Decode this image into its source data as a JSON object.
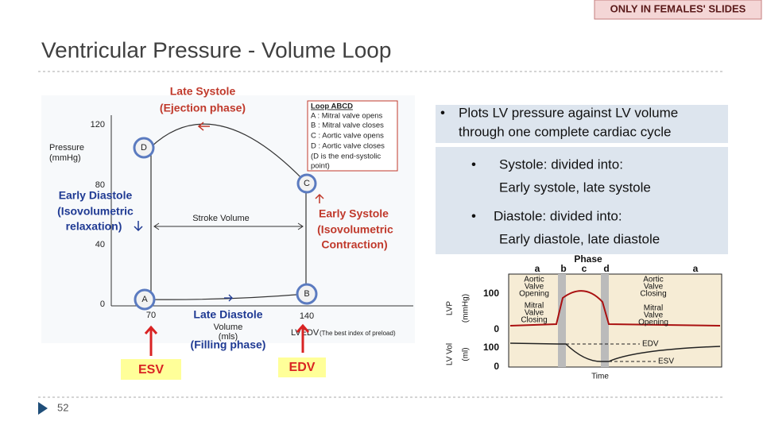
{
  "header": {
    "badge": "ONLY IN FEMALES' SLIDES",
    "title": "Ventricular Pressure - Volume Loop"
  },
  "loop_diagram": {
    "top_label": [
      "Late Systole",
      "(Ejection phase)"
    ],
    "y_axis_title": [
      "Pressure",
      "(mmHg)"
    ],
    "y_ticks": [
      "120",
      "80",
      "40",
      "0"
    ],
    "points": [
      "A",
      "B",
      "C",
      "D"
    ],
    "early_diastole": [
      "Early Diastole",
      "(Isovolumetric",
      "relaxation)"
    ],
    "stroke_volume": "Stroke Volume",
    "early_systole": [
      "Early Systole",
      "(Isovolumetric",
      "Contraction)"
    ],
    "x_ticks": [
      "70",
      "140"
    ],
    "x_axis_title": [
      "Volume",
      "(mls)"
    ],
    "late_diastole": [
      "Late Diastole",
      "(Filling phase)"
    ],
    "lvedv": "LVEDV",
    "lvedv_note": "(The best index of preload)",
    "legend": [
      "Loop  ABCD",
      "A : Mitral valve opens",
      "B : Mitral valve closes",
      "C : Aortic valve opens",
      "D : Aortic valve closes",
      "(D is the end-systolic",
      "point)"
    ],
    "esv": "ESV",
    "edv": "EDV"
  },
  "bullets": [
    [
      "Plots LV pressure against  LV volume",
      "through one complete cardiac cycle"
    ],
    [
      "Systole: divided into:",
      "Early systole, late systole"
    ],
    [
      "Diastole: divided into:",
      "Early diastole, late diastole"
    ]
  ],
  "phase_diagram": {
    "phase_title": "Phase",
    "phases": [
      "a",
      "b",
      "c",
      "d",
      "a"
    ],
    "lvp_label": [
      "LVP",
      "(mmHg)"
    ],
    "lvp_ticks": [
      "100",
      "0"
    ],
    "vol_label": [
      "LV Vol",
      "(ml)"
    ],
    "vol_ticks": [
      "100",
      "0"
    ],
    "aortic_opening": [
      "Aortic",
      "Valve",
      "Opening"
    ],
    "mitral_closing": [
      "Mitral",
      "Valve",
      "Closing"
    ],
    "aortic_closing": [
      "Aortic",
      "Valve",
      "Closing"
    ],
    "mitral_opening": [
      "Mitral",
      "Valve",
      "Opening"
    ],
    "edv": "EDV",
    "esv": "ESV",
    "time": "Time"
  },
  "footer": {
    "page": "52"
  }
}
